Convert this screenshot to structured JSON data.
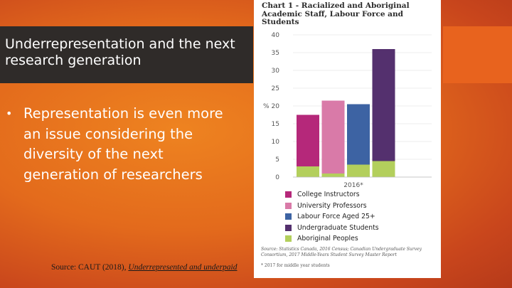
{
  "slide": {
    "title": "Underrepresentation and the next research generation",
    "bullet_marker": "•",
    "bullet": "Representation is even more an issue considering the diversity of the next generation of researchers",
    "source_prefix": "Source: CAUT (2018), ",
    "source_link": "Underrepresented and underpaid",
    "colors": {
      "title_bar": "#2f2b29",
      "background": "#e36a1c"
    }
  },
  "chart_data": {
    "type": "bar",
    "title": "Chart 1 - Racialized and Aboriginal Academic Staff, Labour Force and Students",
    "ylabel": "%",
    "ylim": [
      0,
      40
    ],
    "yticks": [
      "0",
      "5",
      "10",
      "15",
      "20",
      "25",
      "30",
      "35",
      "40"
    ],
    "xlabel": "2016*",
    "series": [
      {
        "name": "College Instructors",
        "color": "#b5287a",
        "value": 17.5
      },
      {
        "name": "University Professors",
        "color": "#d97aa8",
        "value": 21.5
      },
      {
        "name": "Labour Force Aged 25+",
        "color": "#3d63a3",
        "value": 20.5
      },
      {
        "name": "Undergraduate Students",
        "color": "#54306e",
        "value": 36.0
      },
      {
        "name": "Aboriginal Peoples",
        "color": "#b3cf5c",
        "value": null
      }
    ],
    "aboriginal_stack": [
      3.0,
      1.0,
      3.5,
      4.5
    ],
    "grid": true,
    "source_note": "Source: Statistics Canada, 2016 Census; Canadian Undergraduate Survey Consortium, 2017 Middle-Years Student Survey Master Report",
    "footnote": "* 2017 for middle year students"
  }
}
